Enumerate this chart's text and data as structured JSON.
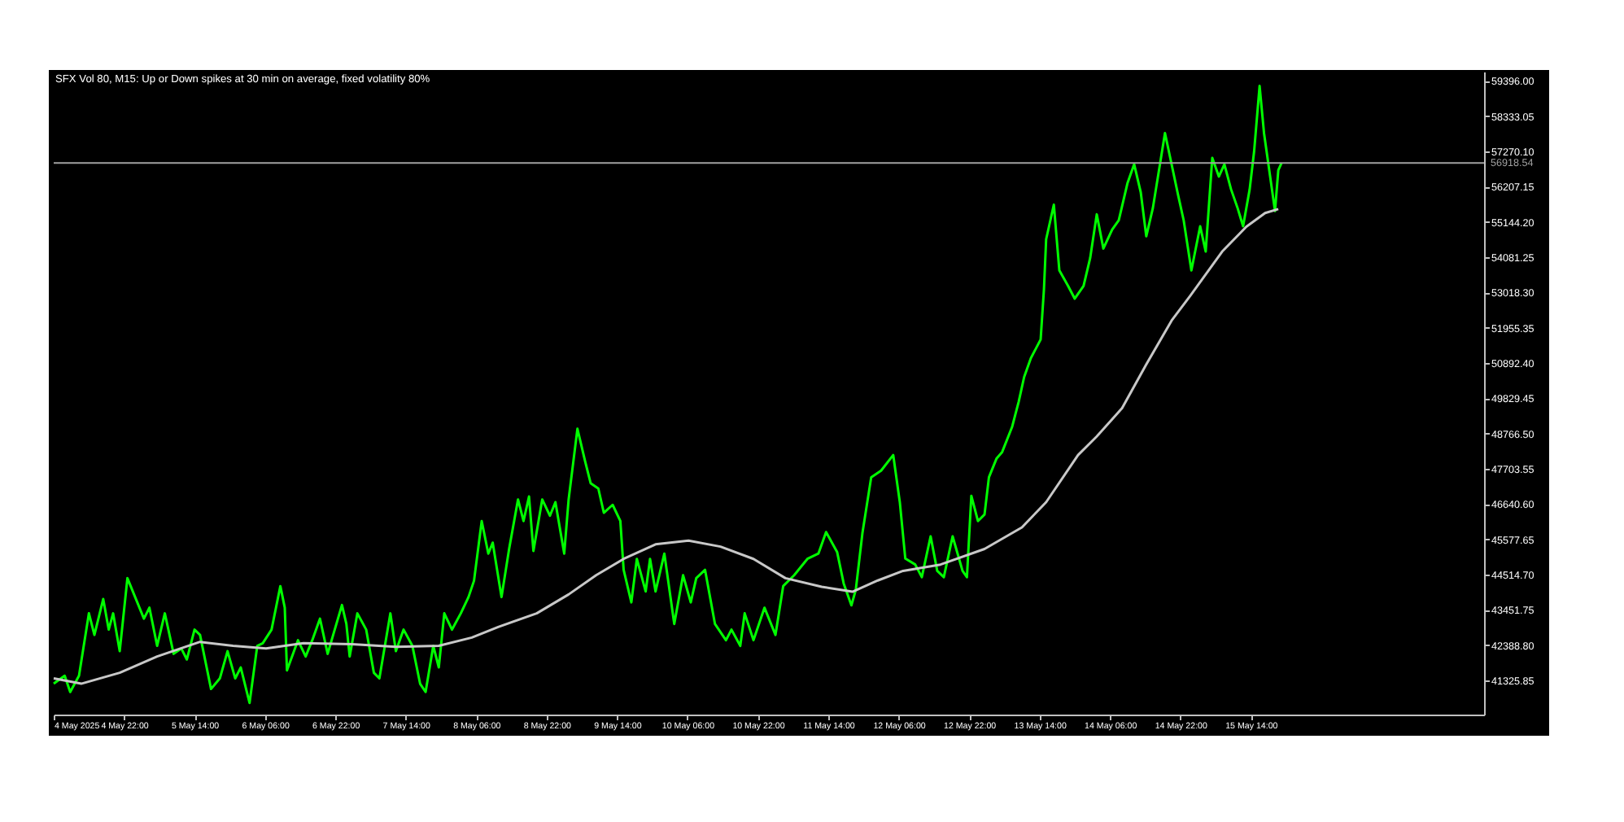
{
  "chart_data": {
    "type": "line",
    "title": "SFX Vol 80, M15:  Up or Down spikes at 30 min on average, fixed volatility 80%",
    "series": [
      {
        "color": "#00ff00",
        "x": [
          "2025-05-04T06:00",
          "2025-05-04T08:30",
          "2025-05-04T09:45",
          "2025-05-04T11:45",
          "2025-05-04T14:00",
          "2025-05-04T15:15",
          "2025-05-04T17:15",
          "2025-05-04T18:30",
          "2025-05-04T19:30",
          "2025-05-04T21:00",
          "2025-05-04T22:45",
          "2025-05-05T00:30",
          "2025-05-05T02:30",
          "2025-05-05T03:45",
          "2025-05-05T05:30",
          "2025-05-05T07:15",
          "2025-05-05T09:15",
          "2025-05-05T11:00",
          "2025-05-05T12:15",
          "2025-05-05T14:00",
          "2025-05-05T15:15",
          "2025-05-05T17:45",
          "2025-05-05T19:45",
          "2025-05-05T21:30",
          "2025-05-05T23:15",
          "2025-05-06T00:30",
          "2025-05-06T02:30",
          "2025-05-06T04:15",
          "2025-05-06T05:30",
          "2025-05-06T07:30",
          "2025-05-06T09:30",
          "2025-05-06T10:30",
          "2025-05-06T11:00",
          "2025-05-06T13:30",
          "2025-05-06T15:15",
          "2025-05-06T16:45",
          "2025-05-06T18:30",
          "2025-05-06T20:15",
          "2025-05-06T21:30",
          "2025-05-06T23:30",
          "2025-05-07T00:30",
          "2025-05-07T01:15",
          "2025-05-07T03:00",
          "2025-05-07T05:00",
          "2025-05-07T06:45",
          "2025-05-07T08:00",
          "2025-05-07T10:30",
          "2025-05-07T11:45",
          "2025-05-07T13:30",
          "2025-05-07T15:30",
          "2025-05-07T17:15",
          "2025-05-07T18:30",
          "2025-05-07T20:15",
          "2025-05-07T21:30",
          "2025-05-07T22:45",
          "2025-05-08T00:30",
          "2025-05-08T02:30",
          "2025-05-08T04:15",
          "2025-05-08T05:30",
          "2025-05-08T07:15",
          "2025-05-08T08:45",
          "2025-05-08T09:45",
          "2025-05-08T11:45",
          "2025-05-08T13:30",
          "2025-05-08T15:30",
          "2025-05-08T16:45",
          "2025-05-08T18:00",
          "2025-05-08T19:00",
          "2025-05-08T21:00",
          "2025-05-08T22:45",
          "2025-05-09T00:00",
          "2025-05-09T02:00",
          "2025-05-09T03:00",
          "2025-05-09T05:00",
          "2025-05-09T06:45",
          "2025-05-09T08:00",
          "2025-05-09T09:45",
          "2025-05-09T11:00",
          "2025-05-09T13:00",
          "2025-05-09T14:45",
          "2025-05-09T15:30",
          "2025-05-09T17:15",
          "2025-05-09T18:30",
          "2025-05-09T20:30",
          "2025-05-09T21:30",
          "2025-05-09T22:45",
          "2025-05-10T00:45",
          "2025-05-10T03:00",
          "2025-05-10T05:00",
          "2025-05-10T06:45",
          "2025-05-10T08:00",
          "2025-05-10T10:00",
          "2025-05-10T12:15",
          "2025-05-10T14:45",
          "2025-05-10T16:00",
          "2025-05-10T18:00",
          "2025-05-10T19:00",
          "2025-05-10T21:00",
          "2025-05-10T23:30",
          "2025-05-11T02:00",
          "2025-05-11T03:45",
          "2025-05-11T06:15",
          "2025-05-11T09:15",
          "2025-05-11T11:45",
          "2025-05-11T13:30",
          "2025-05-11T16:00",
          "2025-05-11T17:30",
          "2025-05-11T19:15",
          "2025-05-11T20:15",
          "2025-05-11T21:45",
          "2025-05-11T23:45",
          "2025-05-12T02:00",
          "2025-05-12T04:45",
          "2025-05-12T06:15",
          "2025-05-12T07:30",
          "2025-05-12T09:45",
          "2025-05-12T11:15",
          "2025-05-12T13:15",
          "2025-05-12T14:45",
          "2025-05-12T16:15",
          "2025-05-12T18:15",
          "2025-05-12T20:30",
          "2025-05-12T21:30",
          "2025-05-12T22:30",
          "2025-05-13T00:00",
          "2025-05-13T01:30",
          "2025-05-13T02:30",
          "2025-05-13T04:15",
          "2025-05-13T05:30",
          "2025-05-13T07:45",
          "2025-05-13T09:15",
          "2025-05-13T10:30",
          "2025-05-13T12:00",
          "2025-05-13T14:15",
          "2025-05-13T15:00",
          "2025-05-13T15:30",
          "2025-05-13T17:15",
          "2025-05-13T18:30",
          "2025-05-13T20:30",
          "2025-05-13T22:00",
          "2025-05-14T00:00",
          "2025-05-14T01:30",
          "2025-05-14T03:00",
          "2025-05-14T04:30",
          "2025-05-14T06:30",
          "2025-05-14T08:00",
          "2025-05-14T10:00",
          "2025-05-14T11:30",
          "2025-05-14T13:00",
          "2025-05-14T14:15",
          "2025-05-14T15:45",
          "2025-05-14T17:15",
          "2025-05-14T18:30",
          "2025-05-14T20:00",
          "2025-05-14T21:30",
          "2025-05-14T22:45",
          "2025-05-15T00:30",
          "2025-05-15T02:30",
          "2025-05-15T03:45",
          "2025-05-15T05:15",
          "2025-05-15T06:45",
          "2025-05-15T08:00",
          "2025-05-15T09:30",
          "2025-05-15T11:00",
          "2025-05-15T12:15",
          "2025-05-15T13:45",
          "2025-05-15T14:45",
          "2025-05-15T16:00",
          "2025-05-15T17:00",
          "2025-05-15T18:00",
          "2025-05-15T19:00",
          "2025-05-15T19:30",
          "2025-05-15T20:15",
          "2025-05-15T21:00"
        ],
        "values": [
          41230,
          41470,
          40980,
          41470,
          43350,
          42700,
          43780,
          42860,
          43350,
          42210,
          44410,
          43840,
          43190,
          43520,
          42370,
          43350,
          42130,
          42290,
          41960,
          42860,
          42700,
          41070,
          41390,
          42210,
          41390,
          41720,
          40650,
          42370,
          42450,
          42860,
          44170,
          43520,
          41630,
          42540,
          42050,
          42540,
          43190,
          42130,
          42700,
          43600,
          43030,
          42050,
          43350,
          42860,
          41560,
          41390,
          43350,
          42210,
          42860,
          42370,
          41230,
          40980,
          42370,
          41720,
          43350,
          42860,
          43350,
          43840,
          44330,
          46130,
          45150,
          45480,
          43840,
          45310,
          46780,
          46130,
          46870,
          45230,
          46780,
          46290,
          46700,
          45150,
          46780,
          48910,
          47930,
          47270,
          47110,
          46380,
          46620,
          46130,
          44660,
          43680,
          44990,
          44010,
          44990,
          44010,
          45150,
          43030,
          44500,
          43680,
          44410,
          44660,
          43030,
          42540,
          42860,
          42370,
          43350,
          42540,
          43520,
          42700,
          44170,
          44500,
          44990,
          45150,
          45800,
          45200,
          44250,
          43590,
          44060,
          45760,
          47450,
          47650,
          48120,
          46700,
          45000,
          44820,
          44440,
          45670,
          44630,
          44440,
          45670,
          44630,
          44440,
          46890,
          46130,
          46330,
          47450,
          48020,
          48210,
          48960,
          49720,
          50470,
          51030,
          51600,
          53110,
          54620,
          55660,
          53680,
          53210,
          52830,
          53210,
          54050,
          55370,
          54340,
          54910,
          55190,
          56320,
          56880,
          56030,
          54710,
          55560,
          56790,
          57820,
          56880,
          55940,
          55190,
          53680,
          55010,
          54250,
          57070,
          56510,
          56880,
          56130,
          55560,
          55010,
          56130,
          57260,
          59240,
          57820,
          56880,
          55940,
          55470,
          56700,
          56920
        ]
      },
      {
        "color": "#c8c8c8",
        "x": [
          "2025-05-04T06:00",
          "2025-05-04T12:15",
          "2025-05-04T21:00",
          "2025-05-05T05:30",
          "2025-05-05T15:15",
          "2025-05-05T22:45",
          "2025-05-06T06:15",
          "2025-05-06T14:45",
          "2025-05-07T01:45",
          "2025-05-07T11:45",
          "2025-05-07T21:30",
          "2025-05-08T05:00",
          "2025-05-08T11:00",
          "2025-05-08T19:45",
          "2025-05-09T03:00",
          "2025-05-09T09:15",
          "2025-05-09T15:30",
          "2025-05-09T22:45",
          "2025-05-10T06:15",
          "2025-05-10T13:30",
          "2025-05-10T21:00",
          "2025-05-11T04:15",
          "2025-05-11T12:30",
          "2025-05-11T19:30",
          "2025-05-12T01:15",
          "2025-05-12T07:00",
          "2025-05-12T15:30",
          "2025-05-13T01:30",
          "2025-05-13T10:00",
          "2025-05-13T15:30",
          "2025-05-13T22:45",
          "2025-05-14T03:00",
          "2025-05-14T08:45",
          "2025-05-14T14:15",
          "2025-05-14T20:00",
          "2025-05-15T00:15",
          "2025-05-15T07:30",
          "2025-05-15T13:00",
          "2025-05-15T17:15",
          "2025-05-15T20:15"
        ],
        "values": [
          41390,
          41230,
          41560,
          42050,
          42490,
          42370,
          42290,
          42450,
          42420,
          42340,
          42370,
          42620,
          42940,
          43350,
          43920,
          44500,
          44990,
          45430,
          45540,
          45360,
          44990,
          44410,
          44150,
          44000,
          44340,
          44630,
          44820,
          45290,
          45940,
          46700,
          48120,
          48680,
          49530,
          50850,
          52170,
          52920,
          54250,
          55000,
          55410,
          55530
        ]
      }
    ],
    "xlim": [
      "2025-05-04T06:00",
      "2025-05-17T19:00"
    ],
    "xticks": [
      {
        "value": "2025-05-04T06:00",
        "label": "4 May 2025"
      },
      {
        "value": "2025-05-04T22:00",
        "label": "4 May 22:00"
      },
      {
        "value": "2025-05-05T14:00",
        "label": "5 May 14:00"
      },
      {
        "value": "2025-05-06T06:00",
        "label": "6 May 06:00"
      },
      {
        "value": "2025-05-06T22:00",
        "label": "6 May 22:00"
      },
      {
        "value": "2025-05-07T14:00",
        "label": "7 May 14:00"
      },
      {
        "value": "2025-05-08T06:00",
        "label": "8 May 06:00"
      },
      {
        "value": "2025-05-08T22:00",
        "label": "8 May 22:00"
      },
      {
        "value": "2025-05-09T14:00",
        "label": "9 May 14:00"
      },
      {
        "value": "2025-05-10T06:00",
        "label": "10 May 06:00"
      },
      {
        "value": "2025-05-10T22:00",
        "label": "10 May 22:00"
      },
      {
        "value": "2025-05-11T14:00",
        "label": "11 May 14:00"
      },
      {
        "value": "2025-05-12T06:00",
        "label": "12 May 06:00"
      },
      {
        "value": "2025-05-12T22:00",
        "label": "12 May 22:00"
      },
      {
        "value": "2025-05-13T14:00",
        "label": "13 May 14:00"
      },
      {
        "value": "2025-05-14T06:00",
        "label": "14 May 06:00"
      },
      {
        "value": "2025-05-14T22:00",
        "label": "14 May 22:00"
      },
      {
        "value": "2025-05-15T14:00",
        "label": "15 May 14:00"
      }
    ],
    "ylim": [
      40300,
      59670
    ],
    "yticks": [
      41325.85,
      {
        "value": 42388.8,
        "label": "42388.80"
      },
      43451.75,
      {
        "value": 44514.7,
        "label": "44514.70"
      },
      45577.65,
      {
        "value": 46640.6,
        "label": "46640.60"
      },
      47703.55,
      {
        "value": 48766.5,
        "label": "48766.50"
      },
      49829.45,
      {
        "value": 50892.4,
        "label": "50892.40"
      },
      51955.35,
      {
        "value": 53018.3,
        "label": "53018.30"
      },
      54081.25,
      {
        "value": 55144.2,
        "label": "55144.20"
      },
      56207.15,
      {
        "value": 57270.1,
        "label": "57270.10"
      },
      58333.05,
      {
        "value": 59396,
        "label": "59396.00"
      }
    ],
    "ref_lines": [
      {
        "axis": "y",
        "value": 56918.54,
        "label": "56918.54",
        "color": "#a0a0a0"
      }
    ],
    "grid": false
  }
}
